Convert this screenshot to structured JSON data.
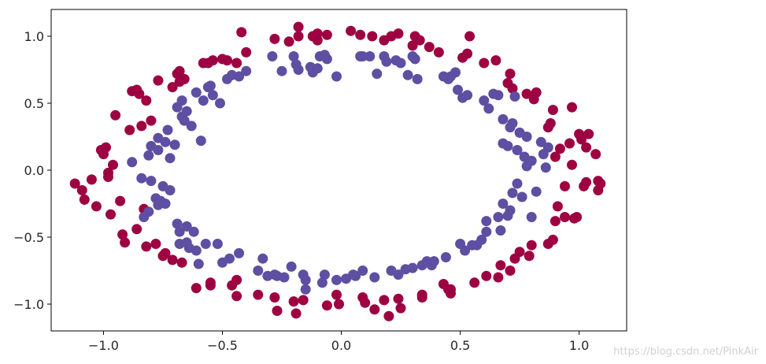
{
  "chart_data": {
    "type": "scatter",
    "title": "",
    "xlabel": "",
    "ylabel": "",
    "xlim": [
      -1.22,
      1.2
    ],
    "ylim": [
      -1.2,
      1.2
    ],
    "xticks": [
      -1.0,
      -0.5,
      0.0,
      0.5,
      1.0
    ],
    "yticks": [
      -1.0,
      -0.5,
      0.0,
      0.5,
      1.0
    ],
    "xtick_labels": [
      "−1.0",
      "−0.5",
      "0.0",
      "0.5",
      "1.0"
    ],
    "ytick_labels": [
      "−1.0",
      "−0.5",
      "0.0",
      "0.5",
      "1.0"
    ],
    "grid": false,
    "series": [
      {
        "color": "#9e0142",
        "points": [
          [
            -1.12,
            -0.1
          ],
          [
            -1.09,
            -0.15
          ],
          [
            -1.08,
            -0.22
          ],
          [
            -1.05,
            -0.07
          ],
          [
            -1.03,
            -0.27
          ],
          [
            -1.01,
            0.15
          ],
          [
            -1.0,
            0.12
          ],
          [
            -0.99,
            0.17
          ],
          [
            -0.98,
            -0.05
          ],
          [
            -0.98,
            -0.02
          ],
          [
            -0.97,
            -0.33
          ],
          [
            -0.96,
            0.04
          ],
          [
            -0.95,
            0.41
          ],
          [
            -0.93,
            -0.23
          ],
          [
            -0.92,
            -0.48
          ],
          [
            -0.91,
            -0.54
          ],
          [
            -0.89,
            0.3
          ],
          [
            -0.88,
            0.59
          ],
          [
            -0.86,
            0.6
          ],
          [
            -0.86,
            -0.44
          ],
          [
            -0.85,
            0.57
          ],
          [
            -0.84,
            0.33
          ],
          [
            -0.83,
            -0.29
          ],
          [
            -0.82,
            0.52
          ],
          [
            -0.82,
            -0.57
          ],
          [
            -0.8,
            0.37
          ],
          [
            -0.78,
            -0.55
          ],
          [
            -0.77,
            0.67
          ],
          [
            -0.75,
            -0.64
          ],
          [
            -0.74,
            -0.62
          ],
          [
            -0.71,
            0.62
          ],
          [
            -0.71,
            -0.67
          ],
          [
            -0.69,
            0.72
          ],
          [
            -0.68,
            0.66
          ],
          [
            -0.68,
            0.74
          ],
          [
            -0.67,
            -0.69
          ],
          [
            -0.66,
            0.68
          ],
          [
            -0.61,
            -0.88
          ],
          [
            -0.58,
            0.8
          ],
          [
            -0.56,
            0.8
          ],
          [
            -0.55,
            -0.84
          ],
          [
            -0.54,
            0.82
          ],
          [
            -0.55,
            -0.86
          ],
          [
            -0.5,
            0.83
          ],
          [
            -0.48,
            0.82
          ],
          [
            -0.46,
            -0.86
          ],
          [
            -0.44,
            0.8
          ],
          [
            -0.44,
            -0.82
          ],
          [
            -0.42,
            1.03
          ],
          [
            -0.4,
            0.88
          ],
          [
            -0.44,
            -0.94
          ],
          [
            -0.35,
            -0.93
          ],
          [
            -0.28,
            0.98
          ],
          [
            -0.28,
            -0.95
          ],
          [
            -0.27,
            -1.05
          ],
          [
            -0.22,
            0.96
          ],
          [
            -0.2,
            -0.98
          ],
          [
            -0.19,
            -1.07
          ],
          [
            -0.18,
            1.07
          ],
          [
            -0.18,
            1.0
          ],
          [
            -0.16,
            -0.97
          ],
          [
            -0.12,
            1.0
          ],
          [
            -0.1,
            1.02
          ],
          [
            -0.1,
            0.97
          ],
          [
            -0.06,
            1.01
          ],
          [
            -0.06,
            -1.01
          ],
          [
            -0.02,
            -0.93
          ],
          [
            -0.01,
            -1.0
          ],
          [
            0.04,
            1.04
          ],
          [
            0.08,
            1.01
          ],
          [
            0.09,
            -0.95
          ],
          [
            0.1,
            -0.99
          ],
          [
            0.13,
            1.0
          ],
          [
            0.14,
            -1.04
          ],
          [
            0.18,
            0.97
          ],
          [
            0.18,
            -0.97
          ],
          [
            0.2,
            -1.09
          ],
          [
            0.21,
            1.0
          ],
          [
            0.24,
            1.02
          ],
          [
            0.25,
            -1.03
          ],
          [
            0.24,
            -0.96
          ],
          [
            0.3,
            0.93
          ],
          [
            0.31,
            1.0
          ],
          [
            0.33,
            0.97
          ],
          [
            0.34,
            -0.95
          ],
          [
            0.34,
            -0.93
          ],
          [
            0.37,
            0.92
          ],
          [
            0.41,
            0.88
          ],
          [
            0.43,
            -0.85
          ],
          [
            0.45,
            -0.89
          ],
          [
            0.46,
            -0.92
          ],
          [
            0.46,
            -0.89
          ],
          [
            0.51,
            0.84
          ],
          [
            0.54,
            1.0
          ],
          [
            0.53,
            0.87
          ],
          [
            0.56,
            -0.84
          ],
          [
            0.6,
            0.8
          ],
          [
            0.61,
            -0.79
          ],
          [
            0.65,
            0.82
          ],
          [
            0.66,
            -0.8
          ],
          [
            0.67,
            -0.71
          ],
          [
            0.7,
            0.65
          ],
          [
            0.71,
            0.72
          ],
          [
            0.71,
            -0.75
          ],
          [
            0.72,
            0.61
          ],
          [
            0.73,
            -0.66
          ],
          [
            0.75,
            -0.61
          ],
          [
            0.78,
            0.57
          ],
          [
            0.79,
            -0.64
          ],
          [
            0.8,
            -0.56
          ],
          [
            0.81,
            0.53
          ],
          [
            0.82,
            0.58
          ],
          [
            0.87,
            -0.55
          ],
          [
            0.88,
            0.35
          ],
          [
            0.87,
            0.32
          ],
          [
            0.89,
            -0.52
          ],
          [
            0.89,
            0.45
          ],
          [
            0.9,
            -0.38
          ],
          [
            0.9,
            0.1
          ],
          [
            0.91,
            -0.27
          ],
          [
            0.92,
            0.16
          ],
          [
            0.94,
            -0.12
          ],
          [
            0.94,
            -0.35
          ],
          [
            0.96,
            0.2
          ],
          [
            0.97,
            0.47
          ],
          [
            0.97,
            0.04
          ],
          [
            0.98,
            -0.36
          ],
          [
            0.99,
            -0.35
          ],
          [
            1.0,
            0.27
          ],
          [
            1.01,
            0.23
          ],
          [
            1.02,
            -0.12
          ],
          [
            1.03,
            0.17
          ],
          [
            1.03,
            -0.09
          ],
          [
            1.04,
            0.27
          ],
          [
            1.07,
            0.12
          ],
          [
            1.08,
            -0.08
          ],
          [
            1.08,
            -0.15
          ],
          [
            1.09,
            -0.1
          ]
        ]
      },
      {
        "color": "#5e4fa2",
        "points": [
          [
            -0.88,
            0.06
          ],
          [
            -0.84,
            -0.06
          ],
          [
            -0.83,
            -0.35
          ],
          [
            -0.81,
            0.11
          ],
          [
            -0.81,
            -0.31
          ],
          [
            -0.8,
            0.18
          ],
          [
            -0.8,
            -0.08
          ],
          [
            -0.78,
            -0.21
          ],
          [
            -0.77,
            0.24
          ],
          [
            -0.77,
            -0.26
          ],
          [
            -0.77,
            0.15
          ],
          [
            -0.76,
            -0.23
          ],
          [
            -0.75,
            -0.12
          ],
          [
            -0.74,
            0.21
          ],
          [
            -0.74,
            -0.25
          ],
          [
            -0.73,
            0.3
          ],
          [
            -0.72,
            0.09
          ],
          [
            -0.72,
            -0.15
          ],
          [
            -0.7,
            0.19
          ],
          [
            -0.69,
            -0.4
          ],
          [
            -0.69,
            0.47
          ],
          [
            -0.68,
            -0.46
          ],
          [
            -0.68,
            -0.55
          ],
          [
            -0.67,
            0.4
          ],
          [
            -0.67,
            0.52
          ],
          [
            -0.66,
            0.37
          ],
          [
            -0.65,
            -0.42
          ],
          [
            -0.65,
            -0.54
          ],
          [
            -0.65,
            0.44
          ],
          [
            -0.64,
            -0.58
          ],
          [
            -0.63,
            0.33
          ],
          [
            -0.62,
            -0.46
          ],
          [
            -0.61,
            -0.6
          ],
          [
            -0.61,
            0.58
          ],
          [
            -0.6,
            -0.7
          ],
          [
            -0.59,
            0.22
          ],
          [
            -0.58,
            0.52
          ],
          [
            -0.57,
            -0.55
          ],
          [
            -0.56,
            0.62
          ],
          [
            -0.55,
            0.63
          ],
          [
            -0.54,
            0.56
          ],
          [
            -0.52,
            -0.55
          ],
          [
            -0.51,
            0.5
          ],
          [
            -0.5,
            -0.69
          ],
          [
            -0.48,
            0.68
          ],
          [
            -0.47,
            -0.66
          ],
          [
            -0.46,
            0.71
          ],
          [
            -0.43,
            0.7
          ],
          [
            -0.43,
            -0.62
          ],
          [
            -0.4,
            0.74
          ],
          [
            -0.35,
            -0.75
          ],
          [
            -0.33,
            -0.66
          ],
          [
            -0.31,
            -0.79
          ],
          [
            -0.29,
            0.85
          ],
          [
            -0.28,
            -0.78
          ],
          [
            -0.27,
            -0.79
          ],
          [
            -0.25,
            0.74
          ],
          [
            -0.24,
            -0.8
          ],
          [
            -0.21,
            -0.72
          ],
          [
            -0.2,
            0.85
          ],
          [
            -0.19,
            0.79
          ],
          [
            -0.18,
            0.75
          ],
          [
            -0.16,
            -0.78
          ],
          [
            -0.15,
            -0.82
          ],
          [
            -0.15,
            -0.89
          ],
          [
            -0.13,
            0.77
          ],
          [
            -0.12,
            0.73
          ],
          [
            -0.1,
            0.76
          ],
          [
            -0.09,
            0.85
          ],
          [
            -0.08,
            -0.84
          ],
          [
            -0.07,
            0.86
          ],
          [
            -0.07,
            -0.78
          ],
          [
            -0.06,
            0.83
          ],
          [
            -0.02,
            0.7
          ],
          [
            -0.02,
            -0.82
          ],
          [
            0.02,
            -0.81
          ],
          [
            0.05,
            -0.78
          ],
          [
            0.06,
            -0.79
          ],
          [
            0.08,
            0.85
          ],
          [
            0.09,
            0.85
          ],
          [
            0.09,
            -0.75
          ],
          [
            0.12,
            0.85
          ],
          [
            0.14,
            -0.8
          ],
          [
            0.15,
            0.72
          ],
          [
            0.18,
            0.85
          ],
          [
            0.19,
            0.81
          ],
          [
            0.21,
            -0.75
          ],
          [
            0.23,
            0.82
          ],
          [
            0.24,
            -0.78
          ],
          [
            0.25,
            0.8
          ],
          [
            0.27,
            -0.74
          ],
          [
            0.28,
            0.71
          ],
          [
            0.3,
            0.85
          ],
          [
            0.3,
            -0.73
          ],
          [
            0.31,
            0.83
          ],
          [
            0.32,
            0.68
          ],
          [
            0.34,
            -0.71
          ],
          [
            0.36,
            -0.68
          ],
          [
            0.38,
            -0.71
          ],
          [
            0.39,
            -0.68
          ],
          [
            0.43,
            0.7
          ],
          [
            0.44,
            -0.65
          ],
          [
            0.45,
            0.68
          ],
          [
            0.46,
            0.7
          ],
          [
            0.48,
            0.73
          ],
          [
            0.49,
            0.6
          ],
          [
            0.5,
            -0.55
          ],
          [
            0.51,
            0.54
          ],
          [
            0.52,
            -0.6
          ],
          [
            0.53,
            0.56
          ],
          [
            0.55,
            -0.56
          ],
          [
            0.57,
            -0.56
          ],
          [
            0.59,
            -0.52
          ],
          [
            0.6,
            0.52
          ],
          [
            0.61,
            -0.46
          ],
          [
            0.61,
            -0.38
          ],
          [
            0.62,
            0.46
          ],
          [
            0.64,
            0.57
          ],
          [
            0.66,
            0.56
          ],
          [
            0.66,
            -0.35
          ],
          [
            0.67,
            -0.45
          ],
          [
            0.68,
            0.38
          ],
          [
            0.68,
            -0.25
          ],
          [
            0.68,
            0.2
          ],
          [
            0.7,
            -0.34
          ],
          [
            0.71,
            0.32
          ],
          [
            0.71,
            -0.3
          ],
          [
            0.72,
            -0.17
          ],
          [
            0.72,
            0.35
          ],
          [
            0.73,
            0.55
          ],
          [
            0.74,
            0.15
          ],
          [
            0.74,
            -0.1
          ],
          [
            0.75,
            0.28
          ],
          [
            0.76,
            -0.2
          ],
          [
            0.77,
            0.1
          ],
          [
            0.78,
            0.25
          ],
          [
            0.78,
            0.03
          ],
          [
            0.8,
            0.07
          ],
          [
            0.8,
            -0.35
          ],
          [
            0.82,
            -0.16
          ],
          [
            0.84,
            0.21
          ],
          [
            0.85,
            0.12
          ],
          [
            0.86,
            0.02
          ],
          [
            0.87,
            0.17
          ],
          [
            0.7,
            0.18
          ]
        ]
      }
    ]
  },
  "watermark": "https://blog.csdn.net/PinkAir"
}
